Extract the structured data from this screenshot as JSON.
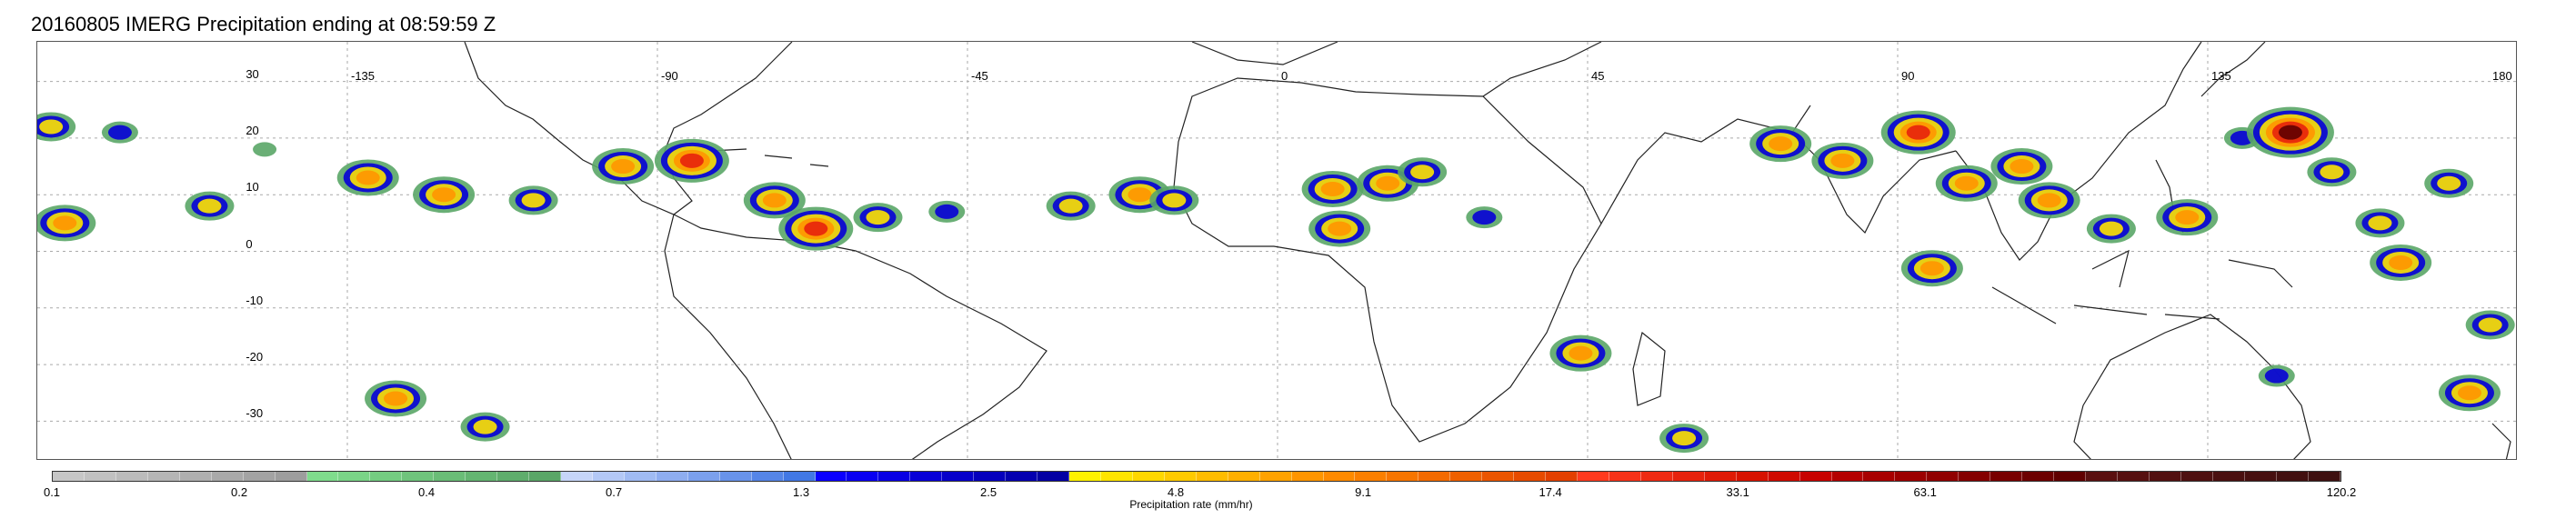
{
  "title": "20160805 IMERG Precipitation ending at 08:59:59 Z",
  "map": {
    "projection": "equirectangular",
    "lon_range": [
      -180,
      180
    ],
    "lat_range": [
      -37,
      37
    ],
    "lon_ticks": [
      "-135",
      "-90",
      "-45",
      "0",
      "45",
      "90",
      "135",
      "180"
    ],
    "lat_ticks": [
      "30",
      "20",
      "10",
      "0",
      "-10",
      "-20",
      "-30"
    ],
    "gridlines": true
  },
  "colorbar": {
    "label": "Precipitation rate (mm/hr)",
    "tick_labels": [
      "0.1",
      "0.2",
      "0.4",
      "0.7",
      "1.3",
      "2.5",
      "4.8",
      "9.1",
      "17.4",
      "33.1",
      "63.1",
      "120.2"
    ],
    "colors": [
      "#c6c6c6",
      "#c1c1c1",
      "#bbbbbb",
      "#b5b5b5",
      "#afafaf",
      "#a9a9a9",
      "#a3a3a3",
      "#9d9d9d",
      "#7fdc8c",
      "#7ad487",
      "#74cc81",
      "#6fc47c",
      "#6abd77",
      "#64b571",
      "#5fad6c",
      "#5aa667",
      "#c6d5f8",
      "#b3c8f6",
      "#a0bbf3",
      "#8eadf0",
      "#7ba0ed",
      "#6893ea",
      "#5585e7",
      "#4278e4",
      "#0a00ff",
      "#0900f2",
      "#0800e4",
      "#0700d7",
      "#0600ca",
      "#0500bd",
      "#0400b0",
      "#0300a3",
      "#fff200",
      "#ffe400",
      "#ffd700",
      "#ffca00",
      "#ffbc00",
      "#ffaf00",
      "#ffa200",
      "#ff9500",
      "#ff8a00",
      "#fb7f00",
      "#f77500",
      "#f36a00",
      "#ef6000",
      "#eb5500",
      "#e74b00",
      "#e34000",
      "#ff3a1e",
      "#f73218",
      "#ef2a12",
      "#e7220c",
      "#df1a06",
      "#d71200",
      "#cf0a00",
      "#c70200",
      "#b40000",
      "#a80000",
      "#9c0000",
      "#900000",
      "#840000",
      "#780000",
      "#6c0000",
      "#600000",
      "#5a1010",
      "#561010",
      "#521010",
      "#4e1010",
      "#4a1010",
      "#461010",
      "#421010",
      "#3e1010"
    ]
  },
  "chart_data": {
    "type": "heatmap",
    "title": "20160805 IMERG Precipitation ending at 08:59:59 Z",
    "xlabel": "",
    "ylabel": "",
    "colorbar_label": "Precipitation rate (mm/hr)",
    "xlim": [
      -180,
      180
    ],
    "ylim": [
      -37,
      37
    ],
    "notable_cells": [
      {
        "lon": -178,
        "lat": 22,
        "rate": 2.5
      },
      {
        "lon": -176,
        "lat": 5,
        "rate": 9.1
      },
      {
        "lon": -168,
        "lat": 21,
        "rate": 1.3
      },
      {
        "lon": -155,
        "lat": 8,
        "rate": 2.5
      },
      {
        "lon": -147,
        "lat": 18,
        "rate": 0.7
      },
      {
        "lon": -132,
        "lat": 13,
        "rate": 9.1
      },
      {
        "lon": -121,
        "lat": 10,
        "rate": 4.8
      },
      {
        "lon": -108,
        "lat": 9,
        "rate": 2.5
      },
      {
        "lon": -95,
        "lat": 15,
        "rate": 9.1
      },
      {
        "lon": -85,
        "lat": 16,
        "rate": 33.1
      },
      {
        "lon": -73,
        "lat": 9,
        "rate": 4.8
      },
      {
        "lon": -67,
        "lat": 4,
        "rate": 17.4
      },
      {
        "lon": -58,
        "lat": 6,
        "rate": 2.5
      },
      {
        "lon": -48,
        "lat": 7,
        "rate": 1.3
      },
      {
        "lon": -30,
        "lat": 8,
        "rate": 2.5
      },
      {
        "lon": -20,
        "lat": 10,
        "rate": 4.8
      },
      {
        "lon": -15,
        "lat": 9,
        "rate": 2.5
      },
      {
        "lon": 8,
        "lat": 11,
        "rate": 9.1
      },
      {
        "lon": 9,
        "lat": 4,
        "rate": 9.1
      },
      {
        "lon": 16,
        "lat": 12,
        "rate": 4.8
      },
      {
        "lon": 21,
        "lat": 14,
        "rate": 2.5
      },
      {
        "lon": 30,
        "lat": 6,
        "rate": 1.3
      },
      {
        "lon": 44,
        "lat": -18,
        "rate": 4.8
      },
      {
        "lon": 73,
        "lat": 19,
        "rate": 9.1
      },
      {
        "lon": 82,
        "lat": 16,
        "rate": 4.8
      },
      {
        "lon": 93,
        "lat": 21,
        "rate": 17.4
      },
      {
        "lon": 95,
        "lat": -3,
        "rate": 9.1
      },
      {
        "lon": 100,
        "lat": 12,
        "rate": 4.8
      },
      {
        "lon": 108,
        "lat": 15,
        "rate": 9.1
      },
      {
        "lon": 112,
        "lat": 9,
        "rate": 4.8
      },
      {
        "lon": 121,
        "lat": 4,
        "rate": 2.5
      },
      {
        "lon": 132,
        "lat": 6,
        "rate": 4.8
      },
      {
        "lon": 140,
        "lat": 20,
        "rate": 1.3
      },
      {
        "lon": 147,
        "lat": 21,
        "rate": 63.1
      },
      {
        "lon": 153,
        "lat": 14,
        "rate": 2.5
      },
      {
        "lon": 160,
        "lat": 5,
        "rate": 2.5
      },
      {
        "lon": 163,
        "lat": -2,
        "rate": 4.8
      },
      {
        "lon": 170,
        "lat": 12,
        "rate": 2.5
      },
      {
        "lon": 176,
        "lat": -13,
        "rate": 2.5
      },
      {
        "lon": 173,
        "lat": -25,
        "rate": 9.1
      },
      {
        "lon": -128,
        "lat": -26,
        "rate": 4.8
      },
      {
        "lon": -115,
        "lat": -31,
        "rate": 2.5
      },
      {
        "lon": 59,
        "lat": -33,
        "rate": 2.5
      },
      {
        "lon": 145,
        "lat": -22,
        "rate": 1.3
      }
    ]
  }
}
